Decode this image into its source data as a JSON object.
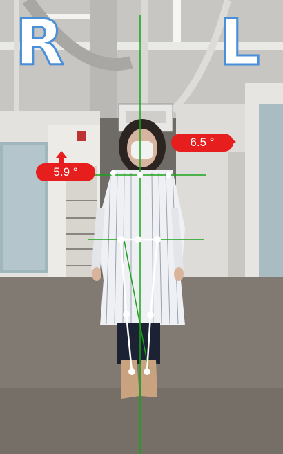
{
  "side_labels": {
    "right": "R",
    "left": "L"
  },
  "angles": {
    "shoulder_right": "5.9 °",
    "shoulder_left": "6.5 °"
  },
  "colors": {
    "badge_red": "#e61e1e",
    "letter_outline": "#4a8fd9",
    "guide_green": "#1aa31a",
    "skeleton_white": "#ffffff"
  }
}
